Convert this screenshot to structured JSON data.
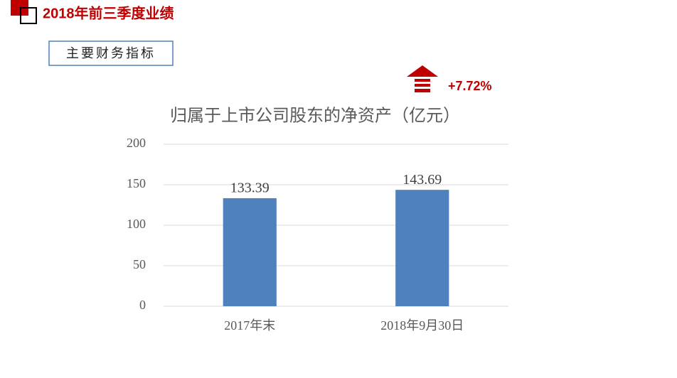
{
  "header": {
    "title": "2018年前三季度业绩",
    "section": "主要财务指标"
  },
  "annotation": "+7.72%",
  "chart_data": {
    "type": "bar",
    "title": "归属于上市公司股东的净资产（亿元）",
    "categories": [
      "2017年末",
      "2018年9月30日"
    ],
    "values": [
      133.39,
      143.69
    ],
    "color": "#4f81bd",
    "ylim": [
      0,
      200
    ],
    "yticks": [
      0,
      50,
      100,
      150,
      200
    ],
    "grid": true
  }
}
